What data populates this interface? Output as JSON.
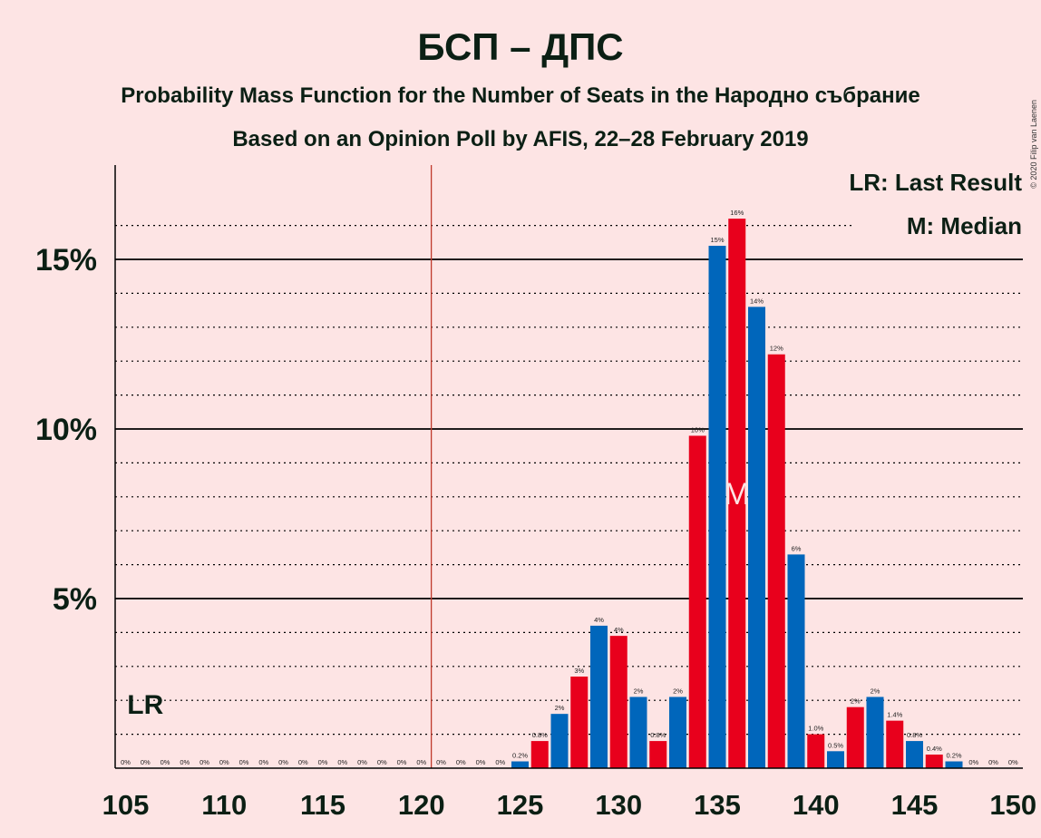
{
  "chart_data": {
    "type": "bar",
    "title": "БСП – ДПС",
    "subtitle": "Probability Mass Function for the Number of Seats in the Народно събрание",
    "subtitle2": "Based on an Opinion Poll by AFIS, 22–28 February 2019",
    "copyright": "© 2020 Filip van Laenen",
    "legend": {
      "lr": "LR: Last Result",
      "m": "M: Median"
    },
    "lr_marker": "LR",
    "median_marker": "M",
    "x_tick_labels": [
      "105",
      "110",
      "115",
      "120",
      "125",
      "130",
      "135",
      "140",
      "145",
      "150"
    ],
    "y_tick_labels": [
      "5%",
      "10%",
      "15%"
    ],
    "xlim": [
      104.5,
      150.5
    ],
    "ylim": [
      0,
      17.6
    ],
    "last_result_seat": 121,
    "lr_label_seat": 106,
    "median_seat": 136,
    "colors": {
      "even": "#e8001c",
      "odd": "#0066bb",
      "lr_line": "#c0392b",
      "grid": "#000000"
    },
    "seats": [
      105,
      106,
      107,
      108,
      109,
      110,
      111,
      112,
      113,
      114,
      115,
      116,
      117,
      118,
      119,
      120,
      121,
      122,
      123,
      124,
      125,
      126,
      127,
      128,
      129,
      130,
      131,
      132,
      133,
      134,
      135,
      136,
      137,
      138,
      139,
      140,
      141,
      142,
      143,
      144,
      145,
      146,
      147,
      148,
      149,
      150
    ],
    "values": [
      0,
      0,
      0,
      0,
      0,
      0,
      0,
      0,
      0,
      0,
      0,
      0,
      0,
      0,
      0,
      0,
      0,
      0,
      0,
      0,
      0.2,
      0.8,
      1.6,
      2.7,
      4.2,
      3.9,
      2.1,
      0.8,
      2.1,
      9.8,
      15.4,
      16.2,
      13.6,
      12.2,
      6.3,
      1.0,
      0.5,
      1.8,
      2.1,
      1.4,
      0.8,
      0.4,
      0.2,
      0,
      0,
      0
    ],
    "labels": [
      "0%",
      "0%",
      "0%",
      "0%",
      "0%",
      "0%",
      "0%",
      "0%",
      "0%",
      "0%",
      "0%",
      "0%",
      "0%",
      "0%",
      "0%",
      "0%",
      "0%",
      "0%",
      "0%",
      "0%",
      "0.2%",
      "0.8%",
      "2%",
      "3%",
      "4%",
      "4%",
      "2%",
      "0.8%",
      "2%",
      "10%",
      "15%",
      "16%",
      "14%",
      "12%",
      "6%",
      "1.0%",
      "0.5%",
      "2%",
      "2%",
      "1.4%",
      "0.8%",
      "0.4%",
      "0.2%",
      "0%",
      "0%",
      "0%"
    ]
  }
}
